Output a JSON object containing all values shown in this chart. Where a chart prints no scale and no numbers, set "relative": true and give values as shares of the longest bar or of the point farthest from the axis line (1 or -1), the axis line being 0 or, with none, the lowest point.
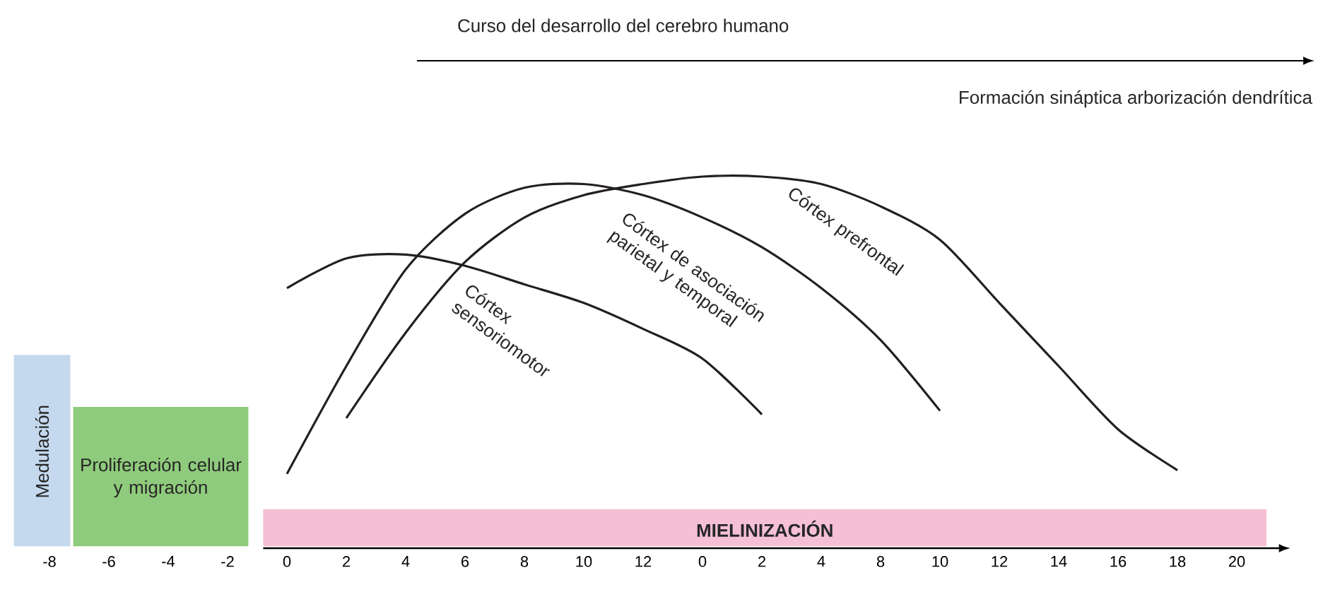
{
  "chart_data": {
    "type": "line",
    "title": "Curso del desarrollo del cerebro humano",
    "subtitle": "Formación sináptica arborización dendrítica",
    "relative": true,
    "marker": "none",
    "line_style": "solid",
    "categories": [
      "-8",
      "-6",
      "-4",
      "-2",
      "0",
      "2",
      "4",
      "6",
      "8",
      "10",
      "12",
      "0",
      "2",
      "4",
      "8",
      "10",
      "12",
      "14",
      "16",
      "18",
      "20"
    ],
    "series": [
      {
        "name": "Córtex sensoriomotor",
        "color": "#231f20",
        "values": [
          null,
          null,
          null,
          null,
          0.7,
          0.78,
          0.79,
          0.76,
          0.71,
          0.66,
          0.59,
          0.51,
          0.36,
          null,
          null,
          null,
          null,
          null,
          null,
          null,
          null
        ]
      },
      {
        "name": "Córtex de asociación parietal y temporal",
        "color": "#231f20",
        "values": [
          null,
          null,
          null,
          null,
          0.2,
          0.49,
          0.75,
          0.9,
          0.97,
          0.98,
          0.95,
          0.89,
          0.81,
          0.7,
          0.56,
          0.37,
          null,
          null,
          null,
          null,
          null
        ]
      },
      {
        "name": "Córtex prefrontal",
        "color": "#231f20",
        "values": [
          null,
          null,
          null,
          null,
          null,
          0.35,
          0.58,
          0.77,
          0.89,
          0.95,
          0.98,
          1.0,
          1.0,
          0.98,
          0.92,
          0.83,
          0.66,
          0.49,
          0.32,
          0.21,
          null
        ]
      }
    ],
    "bands": [
      {
        "axis": "x",
        "from": "-8",
        "to": "-8",
        "label": "Medulación",
        "color": "#c5d9ee"
      },
      {
        "axis": "x",
        "from": "-6",
        "to": "-2",
        "label": "Proliferación celular y migración",
        "color": "#8fcb7c"
      },
      {
        "axis": "x",
        "from": "0",
        "to": "20",
        "label": "**MIELINIZACIÓN**",
        "color": "#f5c0d6"
      }
    ]
  }
}
